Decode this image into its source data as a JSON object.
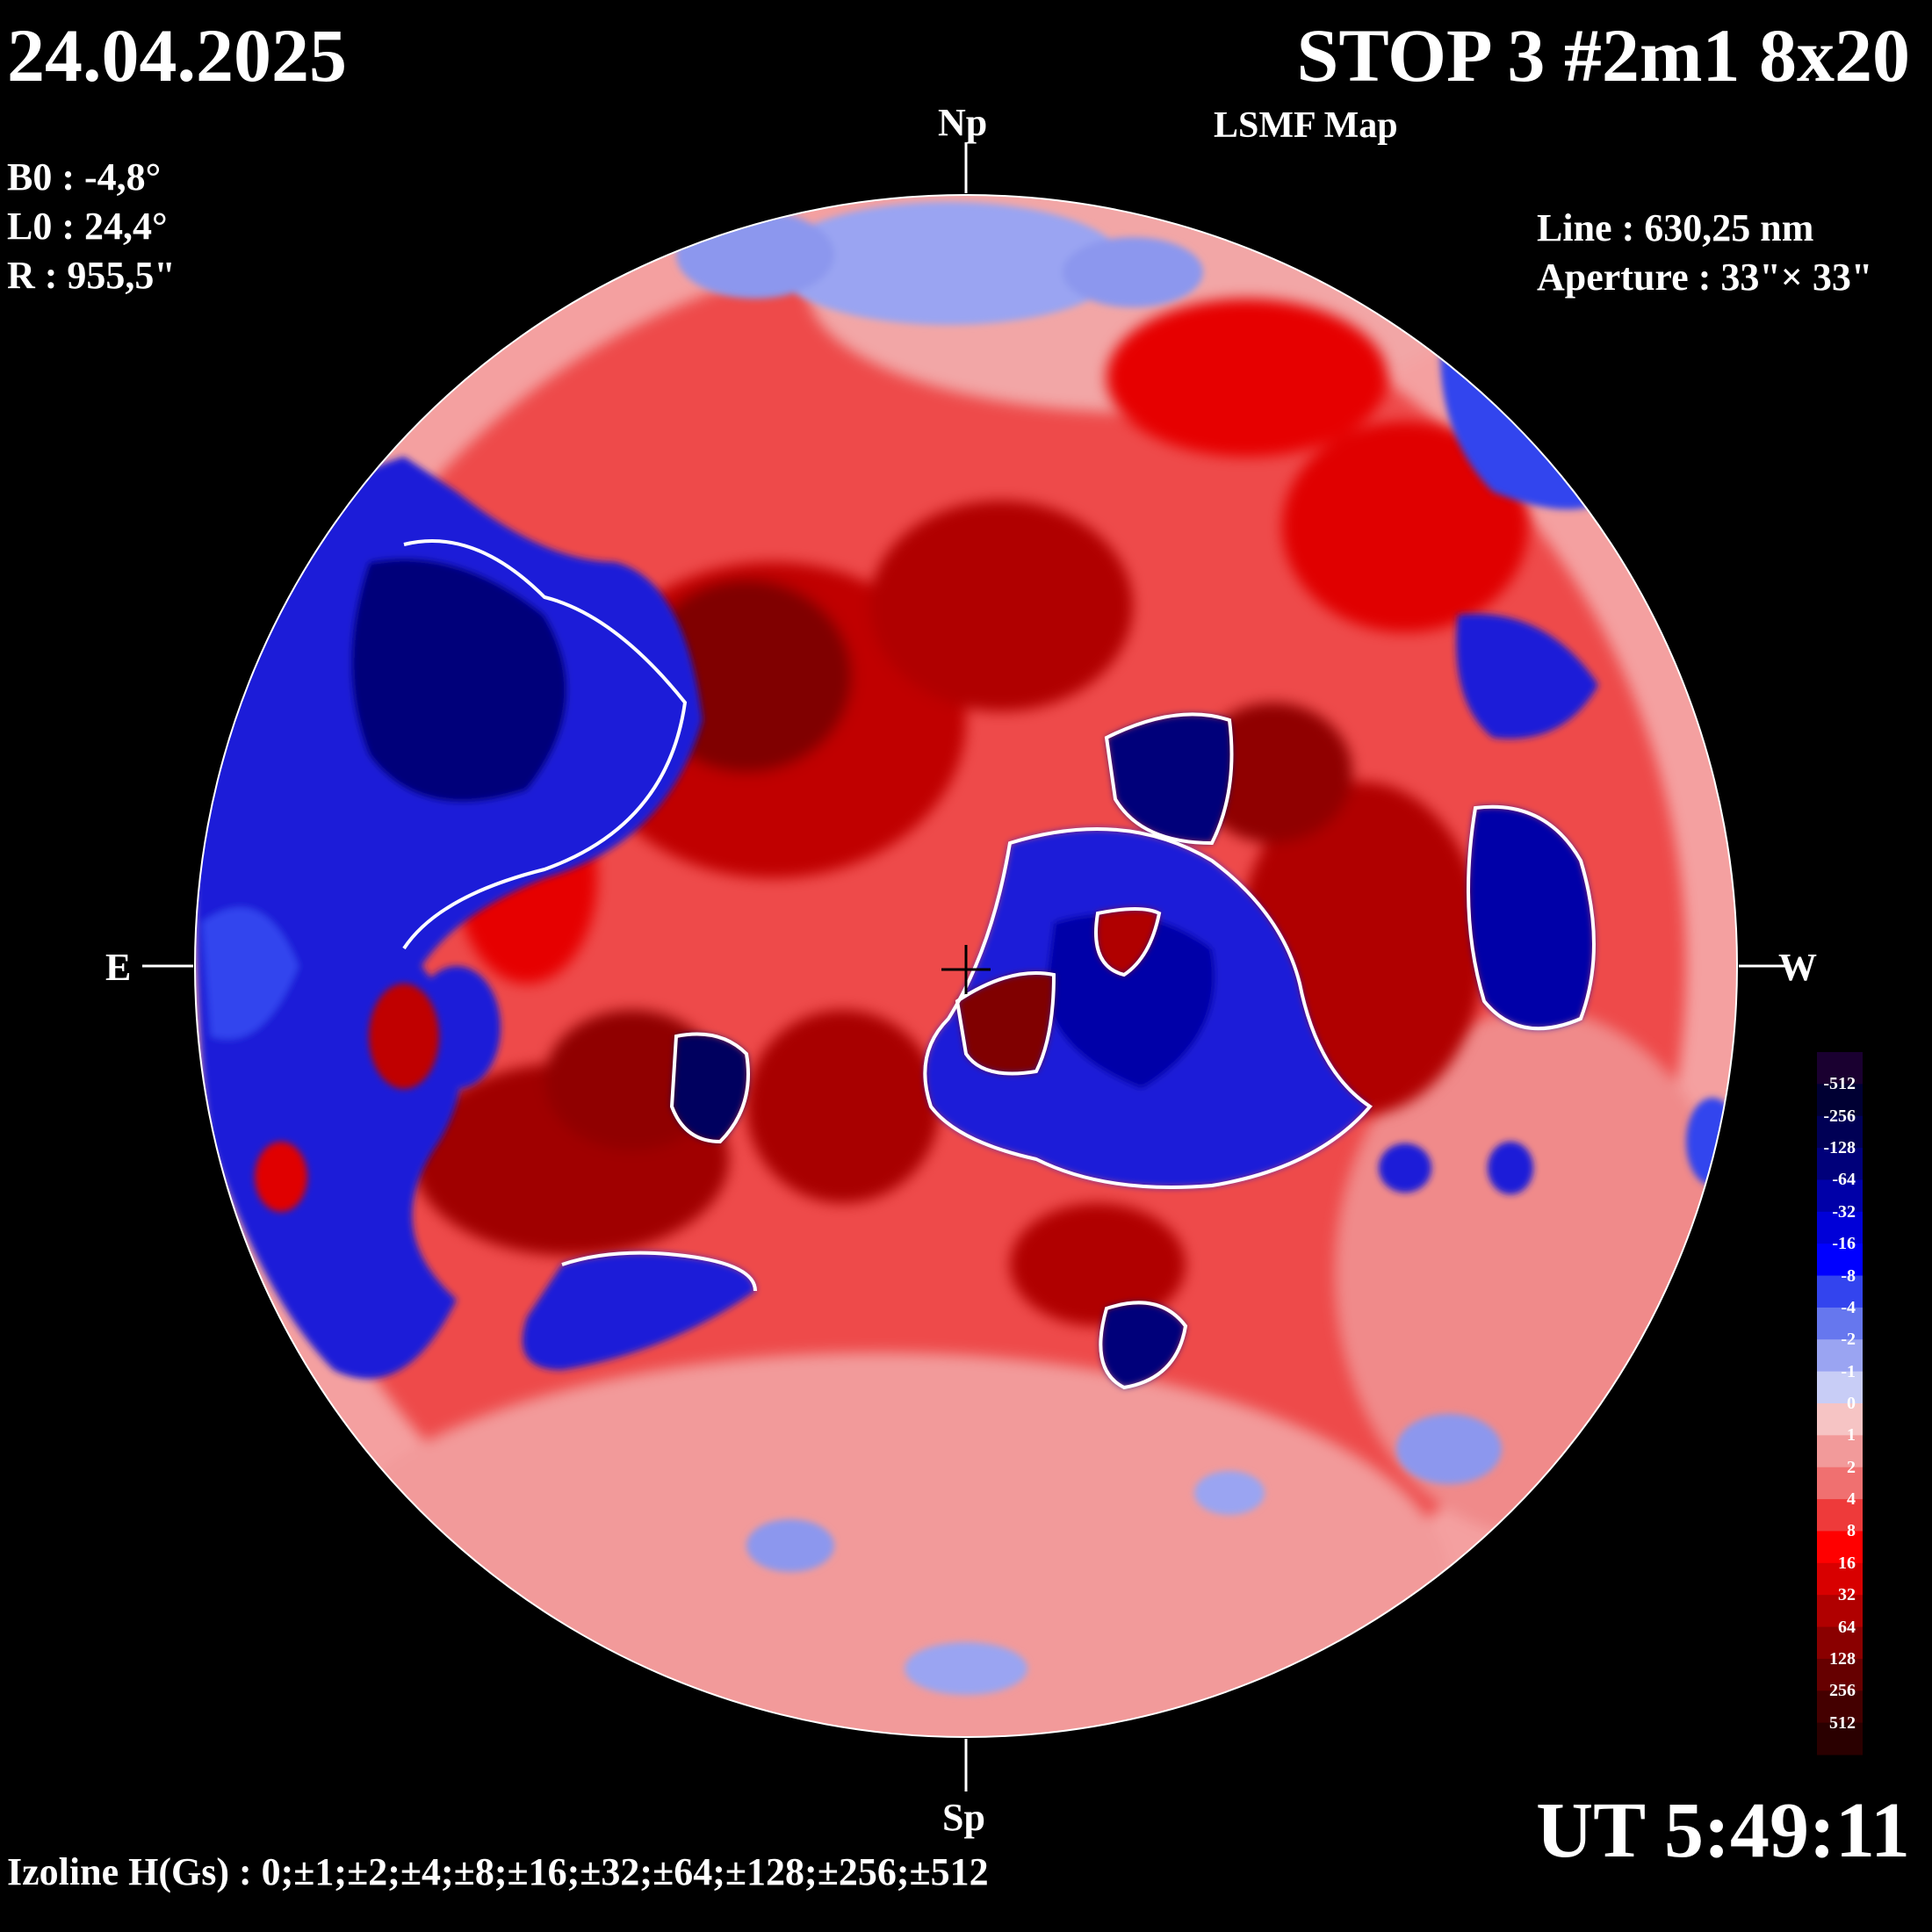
{
  "header": {
    "date": "24.04.2025",
    "title": "STOP 3 #2m1 8x20",
    "subtitle": "LSMF  Map"
  },
  "params": {
    "b0": "B0 : -4,8°",
    "l0": "L0 : 24,4°",
    "r": "R  : 955,5\"",
    "line": "Line :  630,25 nm",
    "aperture": "Aperture : 33\"× 33\""
  },
  "compass": {
    "north": "Np",
    "south": "Sp",
    "east": "E",
    "west": "W"
  },
  "footer": {
    "time": "UT 5:49:11",
    "izoline": "Izoline H(Gs) : 0;±1;±2;±4;±8;±16;±32;±64;±128;±256;±512"
  },
  "color_scale": {
    "labels": [
      "-512",
      "-256",
      "-128",
      "-64",
      "-32",
      "-16",
      "-8",
      "-4",
      "-2",
      "-1",
      "0",
      "1",
      "2",
      "4",
      "8",
      "16",
      "32",
      "64",
      "128",
      "256",
      "512"
    ],
    "colors": [
      "#1a0030",
      "#000033",
      "#000055",
      "#00007a",
      "#0000a8",
      "#0000d8",
      "#0000ff",
      "#3344ee",
      "#6677ee",
      "#9aa4f2",
      "#c8cdf6",
      "#f6c4c4",
      "#f29a9a",
      "#f07070",
      "#ee3a3a",
      "#ff0000",
      "#d80000",
      "#b00000",
      "#8a0000",
      "#660000",
      "#440000",
      "#2a0000"
    ]
  },
  "map_colors": {
    "background": "#ee4a4a",
    "positive_strong": "#a00000",
    "positive_mid": "#e60000",
    "positive_weak": "#f08a8a",
    "neutral": "#f5c6c6",
    "negative_weak": "#8c97ee",
    "negative_mid": "#1a1ad8",
    "negative_strong": "#00005e",
    "isoline": "#ffffff"
  }
}
